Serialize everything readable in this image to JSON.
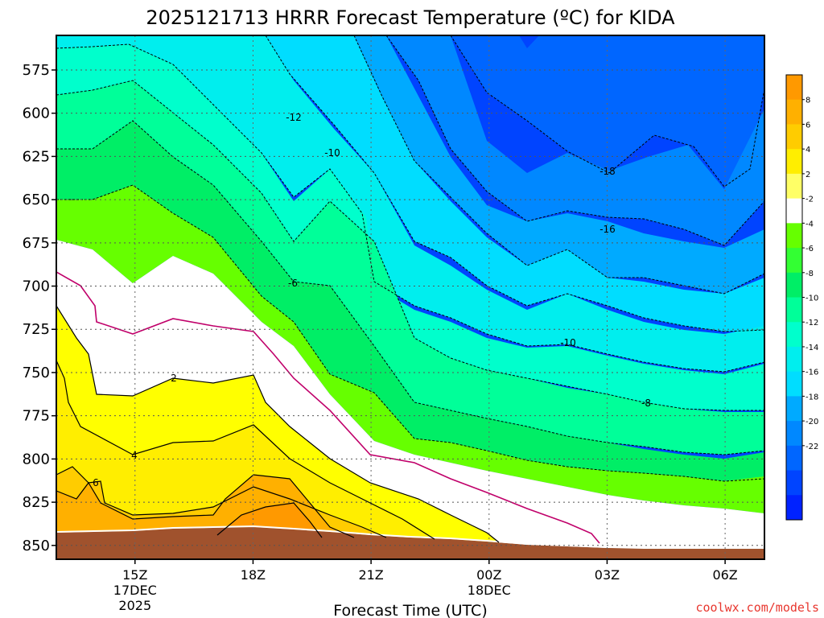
{
  "chart_data": {
    "type": "contour",
    "title": "2025121713 HRRR Forecast Temperature (ºC) for KIDA",
    "xlabel": "Forecast Time (UTC)",
    "ylabel": "",
    "y_ticks": [
      575,
      600,
      625,
      650,
      675,
      700,
      725,
      750,
      775,
      800,
      825,
      850
    ],
    "ylim": [
      555,
      858
    ],
    "x_ticks": [
      {
        "hour": 15,
        "lines": [
          "15Z",
          "17DEC",
          "2025"
        ]
      },
      {
        "hour": 18,
        "lines": [
          "18Z"
        ]
      },
      {
        "hour": 21,
        "lines": [
          "21Z"
        ]
      },
      {
        "hour": 24,
        "lines": [
          "00Z",
          "18DEC"
        ]
      },
      {
        "hour": 27,
        "lines": [
          "03Z"
        ]
      },
      {
        "hour": 30,
        "lines": [
          "06Z"
        ]
      }
    ],
    "xlim": [
      13,
      31
    ],
    "colorbar": {
      "ticks": [
        "8",
        "6",
        "4",
        "2",
        "-2",
        "-4",
        "-6",
        "-8",
        "-10",
        "-12",
        "-14",
        "-16",
        "-18",
        "-20",
        "-22"
      ],
      "colors": [
        "#ff9900",
        "#ffb000",
        "#ffcc00",
        "#ffee00",
        "#ffff66",
        "#ffffff",
        "#66ff00",
        "#33ff33",
        "#00ee66",
        "#00ff99",
        "#00ffcc",
        "#00eeee",
        "#00ddff",
        "#00aaff",
        "#0088ff",
        "#0066ff",
        "#0044ff",
        "#0022ff"
      ]
    },
    "ground_color": "#a0522d",
    "contour_labels": [
      "-18",
      "-16",
      "-12",
      "-10",
      "-10",
      "-8",
      "-6",
      "2",
      "4",
      "6"
    ],
    "grid": true,
    "legend": "right colorbar"
  },
  "credit": "coolwx.com/models"
}
